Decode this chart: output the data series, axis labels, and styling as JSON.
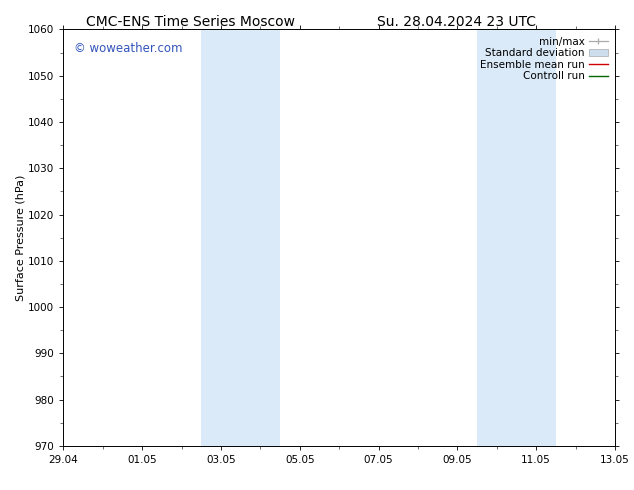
{
  "title_left": "CMC-ENS Time Series Moscow",
  "title_right": "Su. 28.04.2024 23 UTC",
  "ylabel": "Surface Pressure (hPa)",
  "ylim": [
    970,
    1060
  ],
  "yticks": [
    970,
    980,
    990,
    1000,
    1010,
    1020,
    1030,
    1040,
    1050,
    1060
  ],
  "xlim_start": 0,
  "xlim_end": 14,
  "xtick_positions": [
    0,
    2,
    4,
    6,
    8,
    10,
    12,
    14
  ],
  "xtick_labels": [
    "29.04",
    "01.05",
    "03.05",
    "05.05",
    "07.05",
    "09.05",
    "11.05",
    "13.05"
  ],
  "shaded_bands": [
    {
      "x_start": 3.5,
      "x_end": 5.5
    },
    {
      "x_start": 10.5,
      "x_end": 12.5
    }
  ],
  "shade_color": "#daeaf8",
  "background_color": "#ffffff",
  "watermark_text": "© woweather.com",
  "watermark_color": "#3355bb",
  "legend_labels": [
    "min/max",
    "Standard deviation",
    "Ensemble mean run",
    "Controll run"
  ],
  "title_fontsize": 10,
  "axis_label_fontsize": 8,
  "tick_fontsize": 7.5,
  "legend_fontsize": 7.5
}
